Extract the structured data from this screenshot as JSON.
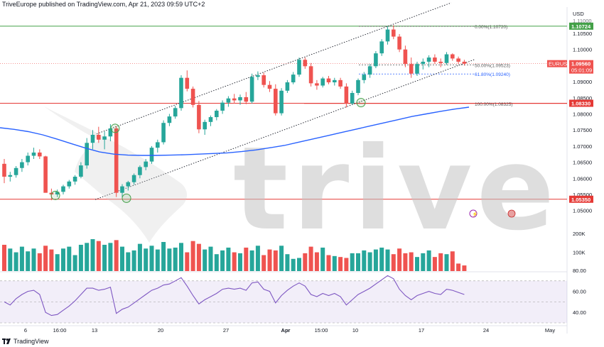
{
  "header": {
    "publish_line": "TriveEurope published on TradingView.com, Apr 21, 2023 09:59 UTC+2"
  },
  "footer": {
    "brand": "TradingView"
  },
  "watermark": {
    "text": "trive",
    "color": "#b9b9b9"
  },
  "colors": {
    "up": "#26a69a",
    "down": "#ef5350",
    "ma": "#2962ff",
    "rsi": "#7e57c2",
    "green_line": "#43a047",
    "red_line": "#e53935"
  },
  "chart_data": {
    "type": "candlestick",
    "symbol": "EURUSD",
    "currency": "USD",
    "y_ticks": [
      "1.10500",
      "1.10000",
      "1.09500",
      "1.09000",
      "1.08500",
      "1.08000",
      "1.07500",
      "1.07000",
      "1.06500",
      "1.06000",
      "1.05500",
      "1.05000"
    ],
    "y_tick_values": [
      1.105,
      1.1,
      1.095,
      1.09,
      1.085,
      1.08,
      1.075,
      1.07,
      1.065,
      1.06,
      1.055,
      1.05
    ],
    "y_range": [
      1.0475,
      1.1125
    ],
    "top_cut_label": "1.11000",
    "x_tick_labels": [
      "6",
      "16:00",
      "13",
      "20",
      "27",
      "Apr",
      "15:00",
      "10",
      "17",
      "24",
      "May"
    ],
    "x_tick_bold": [
      "Apr"
    ],
    "price_tags": [
      {
        "label": "1.10724",
        "value": 1.10724,
        "color": "#43a047"
      },
      {
        "label": "1.09560",
        "value": 1.0956,
        "color": "#ef5350",
        "symbol": "EURUSD",
        "countdown": "05:01:09"
      },
      {
        "label": "1.08330",
        "value": 1.0833,
        "color": "#e53935"
      },
      {
        "label": "1.05350",
        "value": 1.0535,
        "color": "#e53935"
      }
    ],
    "horizontal_lines": [
      {
        "value": 1.10724,
        "color": "#43a047"
      },
      {
        "value": 1.0833,
        "color": "#e53935"
      },
      {
        "value": 1.0535,
        "color": "#e53935"
      }
    ],
    "fibonacci": [
      {
        "label": "0.00%(1.10720)",
        "value": 1.1072,
        "color": "#555555"
      },
      {
        "label": "50.00%(1.09523)",
        "value": 1.09523,
        "color": "#555555"
      },
      {
        "label": "61.80%(1.09240)",
        "value": 1.0924,
        "color": "#2962ff"
      },
      {
        "label": "100.00%(1.08325)",
        "value": 1.08325,
        "color": "#555555"
      }
    ],
    "candles": [
      [
        1.0645,
        1.066,
        1.0585,
        1.0605
      ],
      [
        1.0605,
        1.062,
        1.059,
        1.061
      ],
      [
        1.061,
        1.0638,
        1.0602,
        1.0632
      ],
      [
        1.0632,
        1.066,
        1.062,
        1.065
      ],
      [
        1.065,
        1.068,
        1.064,
        1.067
      ],
      [
        1.067,
        1.0695,
        1.066,
        1.068
      ],
      [
        1.068,
        1.069,
        1.066,
        1.0668
      ],
      [
        1.0668,
        1.067,
        1.056,
        1.0555
      ],
      [
        1.0555,
        1.0568,
        1.0532,
        1.055
      ],
      [
        1.055,
        1.0565,
        1.0542,
        1.0558
      ],
      [
        1.0558,
        1.058,
        1.055,
        1.0575
      ],
      [
        1.0575,
        1.0595,
        1.0568,
        1.059
      ],
      [
        1.059,
        1.061,
        1.058,
        1.0605
      ],
      [
        1.0605,
        1.065,
        1.06,
        1.064
      ],
      [
        1.064,
        1.0725,
        1.063,
        1.071
      ],
      [
        1.071,
        1.075,
        1.069,
        1.0735
      ],
      [
        1.0735,
        1.076,
        1.071,
        1.072
      ],
      [
        1.072,
        1.0745,
        1.069,
        1.073
      ],
      [
        1.073,
        1.0768,
        1.0715,
        1.0755
      ],
      [
        1.0755,
        1.0762,
        1.0542,
        1.0555
      ],
      [
        1.0555,
        1.0582,
        1.0538,
        1.0575
      ],
      [
        1.0575,
        1.0592,
        1.0562,
        1.0588
      ],
      [
        1.0588,
        1.0615,
        1.058,
        1.061
      ],
      [
        1.061,
        1.064,
        1.06,
        1.0635
      ],
      [
        1.0635,
        1.066,
        1.0625,
        1.0652
      ],
      [
        1.0652,
        1.07,
        1.0645,
        1.0695
      ],
      [
        1.0695,
        1.072,
        1.068,
        1.0712
      ],
      [
        1.0712,
        1.078,
        1.0705,
        1.0772
      ],
      [
        1.0772,
        1.08,
        1.0762,
        1.0792
      ],
      [
        1.0792,
        1.0825,
        1.0785,
        1.0818
      ],
      [
        1.0818,
        1.092,
        1.081,
        1.0912
      ],
      [
        1.0912,
        1.0935,
        1.087,
        1.0878
      ],
      [
        1.0878,
        1.0885,
        1.082,
        1.0828
      ],
      [
        1.0828,
        1.084,
        1.074,
        1.0752
      ],
      [
        1.0752,
        1.0782,
        1.0735,
        1.0775
      ],
      [
        1.0775,
        1.0795,
        1.0762,
        1.079
      ],
      [
        1.079,
        1.0815,
        1.078,
        1.081
      ],
      [
        1.081,
        1.0842,
        1.08,
        1.0835
      ],
      [
        1.0835,
        1.0855,
        1.0822,
        1.0848
      ],
      [
        1.0848,
        1.0862,
        1.0832,
        1.0842
      ],
      [
        1.0842,
        1.086,
        1.0828,
        1.0852
      ],
      [
        1.0852,
        1.0868,
        1.083,
        1.0838
      ],
      [
        1.0838,
        1.0925,
        1.0832,
        1.0915
      ],
      [
        1.0915,
        1.0932,
        1.0905,
        1.092
      ],
      [
        1.092,
        1.0928,
        1.0882,
        1.089
      ],
      [
        1.089,
        1.0902,
        1.0868,
        1.0878
      ],
      [
        1.0878,
        1.0892,
        1.0795,
        1.0802
      ],
      [
        1.0802,
        1.088,
        1.0795,
        1.0872
      ],
      [
        1.0872,
        1.0905,
        1.0865,
        1.0898
      ],
      [
        1.0898,
        1.093,
        1.0892,
        1.0922
      ],
      [
        1.0922,
        1.0975,
        1.0915,
        1.0968
      ],
      [
        1.0968,
        1.0975,
        1.094,
        1.0948
      ],
      [
        1.0948,
        1.0958,
        1.0885,
        1.0895
      ],
      [
        1.0895,
        1.0905,
        1.0875,
        1.0888
      ],
      [
        1.0888,
        1.0915,
        1.0882,
        1.091
      ],
      [
        1.091,
        1.0918,
        1.0892,
        1.0898
      ],
      [
        1.0898,
        1.0912,
        1.0888,
        1.0905
      ],
      [
        1.0905,
        1.0912,
        1.0878,
        1.0885
      ],
      [
        1.0885,
        1.0895,
        1.082,
        1.0832
      ],
      [
        1.0832,
        1.0872,
        1.0828,
        1.0865
      ],
      [
        1.0865,
        1.091,
        1.0858,
        1.0905
      ],
      [
        1.0905,
        1.093,
        1.0895,
        1.0922
      ],
      [
        1.0922,
        1.0955,
        1.0912,
        1.0948
      ],
      [
        1.0948,
        1.0995,
        1.0942,
        1.0988
      ],
      [
        1.0988,
        1.1032,
        1.098,
        1.1025
      ],
      [
        1.1025,
        1.1072,
        1.1015,
        1.1062
      ],
      [
        1.1062,
        1.1075,
        1.1032,
        1.104
      ],
      [
        1.104,
        1.1048,
        1.0992,
        1.1
      ],
      [
        1.1,
        1.1012,
        1.0945,
        1.0955
      ],
      [
        1.0955,
        1.0975,
        1.0912,
        1.0925
      ],
      [
        1.0925,
        1.0962,
        1.0918,
        1.0955
      ],
      [
        1.0955,
        1.0972,
        1.0938,
        1.0962
      ],
      [
        1.0962,
        1.0982,
        1.0945,
        1.0975
      ],
      [
        1.0975,
        1.0985,
        1.0955,
        1.0962
      ],
      [
        1.0962,
        1.0972,
        1.0945,
        1.0958
      ],
      [
        1.0958,
        1.0992,
        1.0952,
        1.0985
      ],
      [
        1.0985,
        1.0988,
        1.0965,
        1.0972
      ],
      [
        1.0972,
        1.0978,
        1.0955,
        1.0962
      ],
      [
        1.0962,
        1.0968,
        1.095,
        1.0956
      ]
    ],
    "volume_ticks": [
      "200K",
      "100K"
    ],
    "volume_tick_values": [
      200000,
      100000
    ],
    "volume": [
      140000,
      120000,
      100000,
      130000,
      105000,
      120000,
      95000,
      135000,
      115000,
      90000,
      120000,
      130000,
      85000,
      140000,
      150000,
      170000,
      160000,
      140000,
      150000,
      165000,
      130000,
      100000,
      110000,
      145000,
      120000,
      135000,
      115000,
      155000,
      120000,
      125000,
      150000,
      100000,
      160000,
      145000,
      115000,
      130000,
      90000,
      110000,
      125000,
      100000,
      95000,
      125000,
      110000,
      135000,
      85000,
      115000,
      110000,
      135000,
      90000,
      65000,
      70000,
      95000,
      130000,
      100000,
      125000,
      85000,
      80000,
      75000,
      70000,
      95000,
      95000,
      110000,
      100000,
      115000,
      125000,
      115000,
      90000,
      120000,
      95000,
      100000,
      75000,
      95000,
      110000,
      75000,
      95000,
      90000,
      105000,
      40000,
      30000
    ],
    "rsi_ticks": [
      "80.00",
      "60.00",
      "40.00"
    ],
    "rsi_tick_values": [
      80,
      60,
      40
    ],
    "rsi_band": [
      70,
      30
    ],
    "rsi_range": [
      30,
      82
    ],
    "rsi": [
      50,
      47,
      53,
      57,
      60,
      61,
      57,
      40,
      37,
      38,
      42,
      46,
      51,
      57,
      63,
      63,
      61,
      62,
      64,
      39,
      43,
      45,
      49,
      53,
      57,
      61,
      63,
      66,
      67,
      70,
      73,
      65,
      56,
      48,
      52,
      55,
      58,
      62,
      63,
      62,
      63,
      61,
      68,
      69,
      62,
      60,
      49,
      56,
      61,
      65,
      68,
      65,
      57,
      55,
      58,
      56,
      58,
      55,
      47,
      52,
      57,
      60,
      63,
      67,
      71,
      75,
      72,
      62,
      56,
      52,
      56,
      58,
      60,
      58,
      57,
      62,
      61,
      59,
      57
    ],
    "ma": [
      1.0757,
      1.0752,
      1.0745,
      1.0735,
      1.0722,
      1.0708,
      1.0694,
      1.0682,
      1.0675,
      1.0672,
      1.0671,
      1.0671,
      1.0672,
      1.0673,
      1.0675,
      1.0677,
      1.0679,
      1.0683,
      1.0688,
      1.0695,
      1.0702,
      1.0712,
      1.0722,
      1.0732,
      1.0742,
      1.0752,
      1.0762,
      1.0772,
      1.0782,
      1.0792,
      1.08,
      1.0808,
      1.0815,
      1.0821
    ]
  }
}
